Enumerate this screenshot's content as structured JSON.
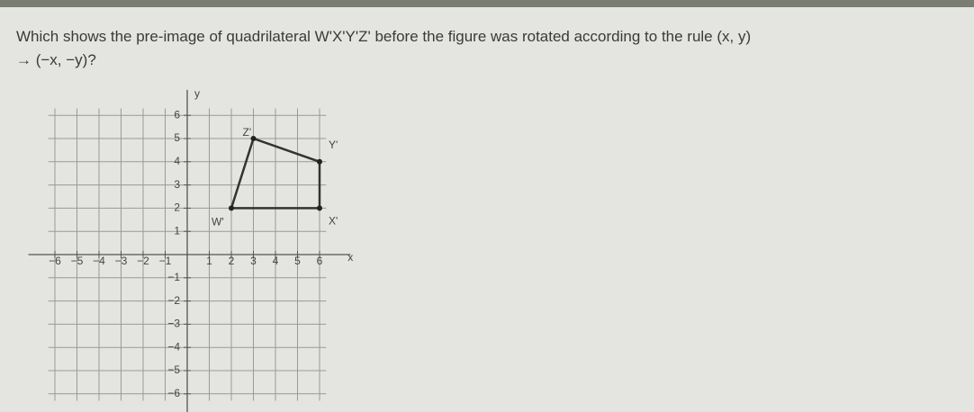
{
  "question": {
    "line1": "Which shows the pre-image of quadrilateral W'X'Y'Z' before the figure was rotated according to the rule (x, y)",
    "line2": "→ (−x, −y)?"
  },
  "graph": {
    "x_axis_label": "x",
    "y_axis_label": "y",
    "x_ticks": [
      {
        "value": -6,
        "label": "−6"
      },
      {
        "value": -5,
        "label": "−5"
      },
      {
        "value": -4,
        "label": "−4"
      },
      {
        "value": -3,
        "label": "−3"
      },
      {
        "value": -2,
        "label": "−2"
      },
      {
        "value": -1,
        "label": "−1"
      },
      1,
      2,
      3,
      4,
      5,
      6
    ],
    "y_ticks": [
      {
        "value": -6,
        "label": "−6"
      },
      {
        "value": -5,
        "label": "−5"
      },
      {
        "value": -4,
        "label": "−4"
      },
      {
        "value": -3,
        "label": "−3"
      },
      {
        "value": -2,
        "label": "−2"
      },
      {
        "value": -1,
        "label": "−1"
      },
      1,
      2,
      3,
      4,
      5,
      6
    ],
    "vertices": [
      {
        "label": "W'",
        "x": 2,
        "y": 2
      },
      {
        "label": "X'",
        "x": 6,
        "y": 2
      },
      {
        "label": "Y'",
        "x": 6,
        "y": 4
      },
      {
        "label": "Z'",
        "x": 3,
        "y": 5
      }
    ]
  }
}
